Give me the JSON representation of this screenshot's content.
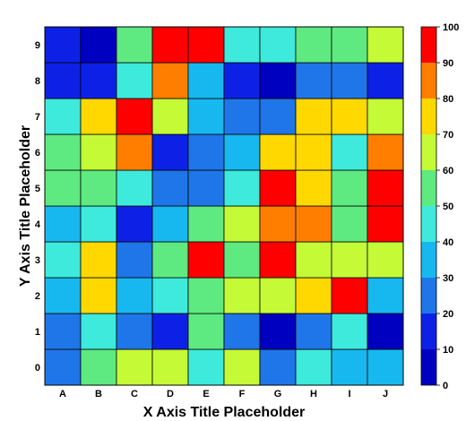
{
  "chart_data": {
    "type": "heatmap",
    "xlabel": "X Axis Title Placeholder",
    "ylabel": "Y Axis Title Placeholder",
    "x_categories": [
      "A",
      "B",
      "C",
      "D",
      "E",
      "F",
      "G",
      "H",
      "I",
      "J"
    ],
    "y_categories": [
      "0",
      "1",
      "2",
      "3",
      "4",
      "5",
      "6",
      "7",
      "8",
      "9"
    ],
    "values": [
      [
        25,
        55,
        65,
        65,
        45,
        65,
        25,
        45,
        35,
        35
      ],
      [
        25,
        45,
        25,
        15,
        55,
        25,
        5,
        25,
        45,
        5
      ],
      [
        35,
        75,
        35,
        45,
        55,
        65,
        65,
        75,
        95,
        35
      ],
      [
        45,
        75,
        25,
        55,
        95,
        55,
        95,
        65,
        65,
        65
      ],
      [
        35,
        45,
        15,
        35,
        55,
        65,
        85,
        85,
        55,
        95
      ],
      [
        55,
        55,
        45,
        25,
        25,
        45,
        95,
        75,
        55,
        95
      ],
      [
        55,
        65,
        85,
        15,
        25,
        35,
        75,
        75,
        45,
        85
      ],
      [
        45,
        75,
        95,
        65,
        35,
        25,
        25,
        75,
        75,
        65
      ],
      [
        15,
        15,
        45,
        85,
        35,
        15,
        5,
        25,
        25,
        15
      ],
      [
        15,
        5,
        55,
        95,
        95,
        45,
        45,
        55,
        55,
        65
      ]
    ],
    "colorbar": {
      "min": 0,
      "max": 100,
      "ticks": [
        "0",
        "10",
        "20",
        "30",
        "40",
        "50",
        "60",
        "70",
        "80",
        "90",
        "100"
      ],
      "colors": [
        "#0000c0",
        "#0d21e6",
        "#1f76e8",
        "#17b8f0",
        "#3deadb",
        "#5eea80",
        "#c4fa36",
        "#ffd800",
        "#ff7e00",
        "#ff0000"
      ]
    }
  }
}
